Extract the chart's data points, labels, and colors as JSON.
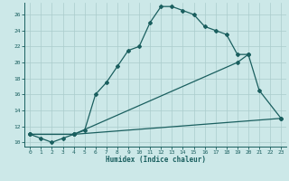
{
  "xlabel": "Humidex (Indice chaleur)",
  "bg_color": "#cce8e8",
  "grid_color": "#aacccc",
  "line_color": "#1a5f5f",
  "xlim": [
    -0.5,
    23.5
  ],
  "ylim": [
    9.5,
    27.5
  ],
  "xticks": [
    0,
    1,
    2,
    3,
    4,
    5,
    6,
    7,
    8,
    9,
    10,
    11,
    12,
    13,
    14,
    15,
    16,
    17,
    18,
    19,
    20,
    21,
    22,
    23
  ],
  "yticks": [
    10,
    12,
    14,
    16,
    18,
    20,
    22,
    24,
    26
  ],
  "line1_x": [
    0,
    1,
    2,
    3,
    4,
    5,
    6,
    7,
    8,
    9,
    10,
    11,
    12,
    13,
    14,
    15,
    16,
    17,
    18,
    19,
    20
  ],
  "line1_y": [
    11.0,
    10.5,
    10.0,
    10.5,
    11.0,
    11.5,
    16.0,
    17.5,
    19.5,
    21.5,
    22.0,
    25.0,
    27.0,
    27.0,
    26.5,
    26.0,
    24.5,
    24.0,
    23.5,
    21.0,
    21.0
  ],
  "line2_x": [
    0,
    4,
    19,
    20,
    21,
    23
  ],
  "line2_y": [
    11.0,
    11.0,
    20.0,
    21.0,
    16.5,
    13.0
  ],
  "line3_x": [
    0,
    4,
    23
  ],
  "line3_y": [
    11.0,
    11.0,
    13.0
  ],
  "marker_style": "D",
  "marker_size": 2.0,
  "line_width": 0.9,
  "xlabel_fontsize": 5.5,
  "tick_fontsize": 4.5
}
